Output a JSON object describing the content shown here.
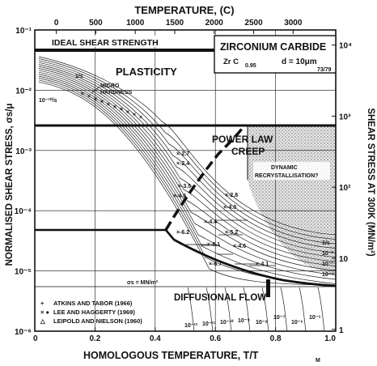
{
  "chart_data": {
    "type": "deformation-map",
    "title": "ZIRCONIUM CARBIDE",
    "material": {
      "formula": "Zr C",
      "subscript": "0.95",
      "grain": "d = 10μm",
      "ref": "73/79"
    },
    "xlabel": "HOMOLOGOUS TEMPERATURE, T/T",
    "xlabel_sub": "M",
    "xlim": [
      0,
      1
    ],
    "x_ticks": [
      "0",
      "0.2",
      "0.4",
      "0.6",
      "0.8",
      "1.0"
    ],
    "top_label": "TEMPERATURE, (C)",
    "top_ticks": [
      "0",
      "500",
      "1000",
      "1500",
      "2000",
      "2500",
      "3000"
    ],
    "ylabel_left": "NORMALISED SHEAR STRESS, σs/μ",
    "ylim_log10": [
      -6,
      -1
    ],
    "y_ticks_left": [
      "10⁻¹",
      "10⁻²",
      "10⁻³",
      "10⁻⁴",
      "10⁻⁵",
      "10⁻⁶"
    ],
    "ylabel_right": "SHEAR STRESS AT 300K (MN/m²)",
    "y_ticks_right": [
      "10⁴",
      "10³",
      "10²",
      "10",
      "1"
    ],
    "fields": {
      "ideal": "IDEAL SHEAR STRENGTH",
      "plasticity": "PLASTICITY",
      "powerlaw": "POWER LAW",
      "creep": "CREEP",
      "dynamic": "DYNAMIC",
      "recryst": "RECRYSTALLISATION?",
      "diffusional": "DIFFUSIONAL FLOW",
      "micro": "MICRO",
      "hardness": "HARDNESS",
      "sigma_line": "σs = MN/m²"
    },
    "strain_rates_left": [
      "1/s",
      "10⁻¹⁰/s"
    ],
    "strain_rates_right": [
      "1/s",
      "10⁻²",
      "10⁻³",
      "10⁻⁴"
    ],
    "strain_rates_bottom": [
      "10⁻¹²",
      "10⁻¹¹",
      "10⁻¹⁰",
      "10⁻⁹",
      "10⁻⁸",
      "10⁻⁷",
      "10⁻⁶",
      "10⁻⁵"
    ],
    "data_labels": [
      "2.7",
      "2.4",
      "3.5",
      "4.6",
      "2.8",
      "4.0",
      "4.4",
      "6.2",
      "5.2",
      "6.1",
      "4.6",
      "6.7",
      "4.1"
    ],
    "legend": [
      {
        "symbol": "+",
        "text": "ATKINS AND TABOR (1966)"
      },
      {
        "symbol": "× ●",
        "text": "LEE AND HAGGERTY (1969)"
      },
      {
        "symbol": "△",
        "text": "LEIPOLD AND NIELSON (1960)"
      }
    ]
  }
}
